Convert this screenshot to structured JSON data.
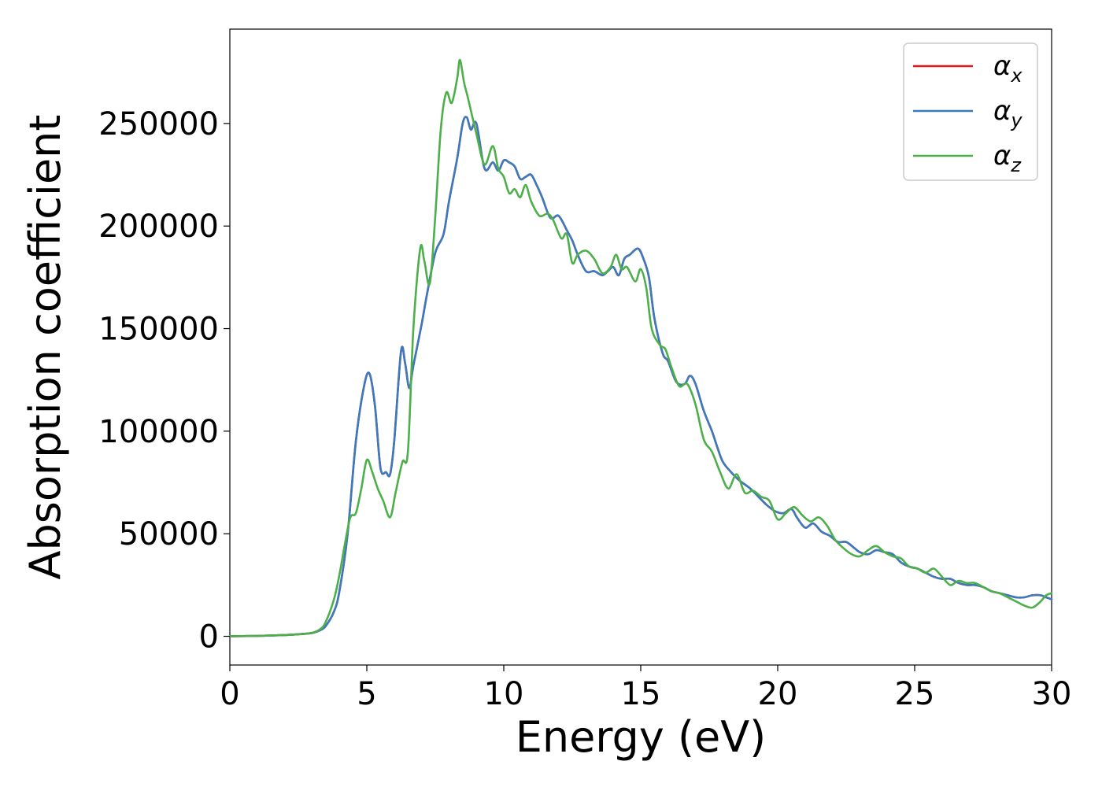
{
  "chart_data": {
    "type": "line",
    "title": "",
    "xlabel": "Energy (eV)",
    "ylabel": "Absorption coefficient",
    "xlim": [
      0,
      30
    ],
    "ylim": [
      -14000,
      296000
    ],
    "x_ticks": [
      0,
      5,
      10,
      15,
      20,
      25,
      30
    ],
    "y_ticks": [
      0,
      50000,
      100000,
      150000,
      200000,
      250000
    ],
    "grid": false,
    "legend_position": "top-right",
    "series": [
      {
        "name": "αx",
        "label_base": "α",
        "label_sub": "x",
        "color": "#e41a1c",
        "x": [
          0,
          1,
          2,
          2.5,
          3,
          3.3,
          3.5,
          3.8,
          4,
          4.3,
          4.6,
          4.9,
          5.1,
          5.3,
          5.5,
          5.7,
          5.85,
          6,
          6.25,
          6.4,
          6.55,
          6.7,
          7,
          7.2,
          7.5,
          7.8,
          8,
          8.3,
          8.5,
          8.65,
          8.8,
          9,
          9.3,
          9.6,
          9.8,
          10,
          10.2,
          10.4,
          10.6,
          10.8,
          11,
          11.2,
          11.4,
          11.7,
          12,
          12.3,
          12.5,
          12.7,
          13,
          13.3,
          13.6,
          13.8,
          14,
          14.2,
          14.4,
          14.6,
          14.9,
          15.1,
          15.3,
          15.5,
          15.8,
          16,
          16.3,
          16.6,
          16.8,
          17,
          17.3,
          17.6,
          17.8,
          18,
          18.3,
          18.6,
          19,
          19.3,
          19.6,
          19.9,
          20.2,
          20.5,
          20.7,
          21,
          21.3,
          21.6,
          21.9,
          22.2,
          22.5,
          22.8,
          23,
          23.3,
          23.6,
          23.9,
          24.2,
          24.5,
          24.8,
          25.1,
          25.4,
          25.7,
          26,
          26.3,
          26.6,
          26.9,
          27.2,
          27.5,
          27.8,
          28.1,
          28.4,
          28.7,
          29,
          29.3,
          29.6,
          29.8,
          30
        ],
        "y": [
          0,
          200,
          600,
          1000,
          1600,
          3000,
          5000,
          12000,
          22000,
          50000,
          95000,
          122000,
          128000,
          112000,
          82000,
          80000,
          79000,
          95000,
          139000,
          133000,
          121000,
          132000,
          152000,
          167000,
          187000,
          196000,
          212000,
          233000,
          250000,
          253000,
          247000,
          250000,
          228000,
          231000,
          227000,
          232000,
          231000,
          229000,
          223000,
          224000,
          225000,
          220000,
          214000,
          204000,
          205000,
          198000,
          193000,
          186000,
          178000,
          178000,
          176000,
          178000,
          180000,
          176000,
          184000,
          186000,
          189000,
          184000,
          175000,
          155000,
          138000,
          134000,
          124000,
          123000,
          127000,
          123000,
          110000,
          100000,
          92000,
          85000,
          80000,
          76000,
          72000,
          68000,
          64000,
          61000,
          60000,
          62000,
          58000,
          53000,
          55000,
          51000,
          49000,
          46000,
          46000,
          43000,
          41000,
          40000,
          42000,
          41000,
          40000,
          36000,
          34000,
          33000,
          31000,
          29000,
          28000,
          28000,
          26000,
          25000,
          25000,
          24000,
          22000,
          21000,
          20000,
          19000,
          19000,
          20000,
          20000,
          19000,
          18000
        ]
      },
      {
        "name": "αy",
        "label_base": "α",
        "label_sub": "y",
        "color": "#3a7bbf",
        "x": [
          0,
          1,
          2,
          2.5,
          3,
          3.3,
          3.5,
          3.8,
          4,
          4.3,
          4.6,
          4.9,
          5.1,
          5.3,
          5.5,
          5.7,
          5.85,
          6,
          6.25,
          6.4,
          6.55,
          6.7,
          7,
          7.2,
          7.5,
          7.8,
          8,
          8.3,
          8.5,
          8.65,
          8.8,
          9,
          9.3,
          9.6,
          9.8,
          10,
          10.2,
          10.4,
          10.6,
          10.8,
          11,
          11.2,
          11.4,
          11.7,
          12,
          12.3,
          12.5,
          12.7,
          13,
          13.3,
          13.6,
          13.8,
          14,
          14.2,
          14.4,
          14.6,
          14.9,
          15.1,
          15.3,
          15.5,
          15.8,
          16,
          16.3,
          16.6,
          16.8,
          17,
          17.3,
          17.6,
          17.8,
          18,
          18.3,
          18.6,
          19,
          19.3,
          19.6,
          19.9,
          20.2,
          20.5,
          20.7,
          21,
          21.3,
          21.6,
          21.9,
          22.2,
          22.5,
          22.8,
          23,
          23.3,
          23.6,
          23.9,
          24.2,
          24.5,
          24.8,
          25.1,
          25.4,
          25.7,
          26,
          26.3,
          26.6,
          26.9,
          27.2,
          27.5,
          27.8,
          28.1,
          28.4,
          28.7,
          29,
          29.3,
          29.6,
          29.8,
          30
        ],
        "y": [
          0,
          200,
          600,
          1000,
          1600,
          3000,
          5000,
          12000,
          22000,
          50000,
          95000,
          122000,
          128000,
          112000,
          82000,
          80000,
          79000,
          95000,
          139000,
          133000,
          121000,
          132000,
          152000,
          167000,
          187000,
          196000,
          212000,
          233000,
          250000,
          253000,
          247000,
          250000,
          228000,
          231000,
          227000,
          232000,
          231000,
          229000,
          223000,
          224000,
          225000,
          220000,
          214000,
          204000,
          205000,
          198000,
          193000,
          186000,
          178000,
          178000,
          176000,
          178000,
          180000,
          176000,
          184000,
          186000,
          189000,
          184000,
          175000,
          155000,
          138000,
          134000,
          124000,
          123000,
          127000,
          123000,
          110000,
          100000,
          92000,
          85000,
          80000,
          76000,
          72000,
          68000,
          64000,
          61000,
          60000,
          62000,
          58000,
          53000,
          55000,
          51000,
          49000,
          46000,
          46000,
          43000,
          41000,
          40000,
          42000,
          41000,
          40000,
          36000,
          34000,
          33000,
          31000,
          29000,
          28000,
          28000,
          26000,
          25000,
          25000,
          24000,
          22000,
          21000,
          20000,
          19000,
          19000,
          20000,
          20000,
          19000,
          18000
        ]
      },
      {
        "name": "αz",
        "label_base": "α",
        "label_sub": "z",
        "color": "#4daf4a",
        "x": [
          0,
          1,
          2,
          2.5,
          3,
          3.3,
          3.5,
          3.8,
          4,
          4.2,
          4.4,
          4.6,
          4.8,
          5,
          5.2,
          5.4,
          5.6,
          5.85,
          6.05,
          6.3,
          6.5,
          6.7,
          6.95,
          7.1,
          7.3,
          7.5,
          7.7,
          7.9,
          8.1,
          8.3,
          8.4,
          8.55,
          8.7,
          9,
          9.3,
          9.6,
          9.8,
          10,
          10.2,
          10.4,
          10.6,
          10.8,
          11,
          11.3,
          11.6,
          11.8,
          12.1,
          12.3,
          12.5,
          12.7,
          13,
          13.3,
          13.6,
          13.9,
          14.1,
          14.3,
          14.5,
          14.8,
          15,
          15.2,
          15.4,
          15.7,
          15.9,
          16.1,
          16.4,
          16.7,
          17,
          17.3,
          17.6,
          17.9,
          18.2,
          18.5,
          18.8,
          19.1,
          19.4,
          19.7,
          20,
          20.3,
          20.6,
          20.9,
          21.2,
          21.5,
          21.8,
          22.1,
          22.4,
          22.7,
          23,
          23.3,
          23.6,
          23.9,
          24.2,
          24.5,
          24.8,
          25.1,
          25.4,
          25.7,
          26,
          26.3,
          26.6,
          26.9,
          27.2,
          27.5,
          27.8,
          28.1,
          28.4,
          28.7,
          29,
          29.3,
          29.6,
          29.8,
          30
        ],
        "y": [
          0,
          200,
          600,
          1000,
          1700,
          3500,
          7000,
          18000,
          30000,
          45000,
          58000,
          60000,
          72000,
          86000,
          80000,
          72000,
          66000,
          58000,
          70000,
          85000,
          90000,
          150000,
          189000,
          183000,
          172000,
          205000,
          247000,
          265000,
          260000,
          272000,
          281000,
          270000,
          262000,
          245000,
          230000,
          239000,
          228000,
          224000,
          216000,
          218000,
          214000,
          220000,
          212000,
          205000,
          206000,
          203000,
          194000,
          196000,
          182000,
          186000,
          188000,
          184000,
          177000,
          180000,
          186000,
          179000,
          180000,
          173000,
          179000,
          170000,
          150000,
          142000,
          140000,
          132000,
          122000,
          123000,
          113000,
          96000,
          90000,
          80000,
          72000,
          79000,
          70000,
          71000,
          68000,
          66000,
          57000,
          60000,
          63000,
          59000,
          56000,
          58000,
          54000,
          47000,
          43000,
          40000,
          39000,
          42000,
          44000,
          41000,
          39000,
          38000,
          34000,
          33000,
          31000,
          33000,
          29000,
          25000,
          27000,
          26000,
          26000,
          24000,
          22000,
          21000,
          19000,
          17000,
          15000,
          14000,
          17000,
          20000,
          21000
        ]
      }
    ]
  }
}
